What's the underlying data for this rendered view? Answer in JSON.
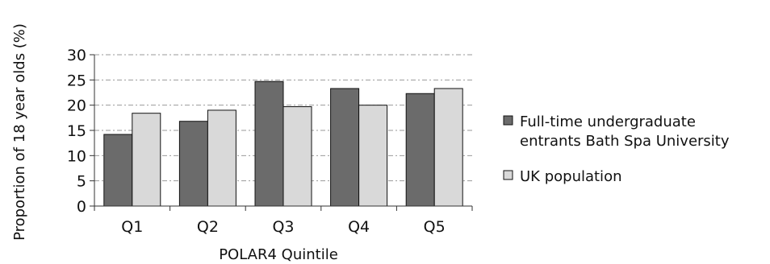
{
  "chart_data": {
    "type": "bar",
    "title": "",
    "xlabel": "POLAR4 Quintile",
    "ylabel": "Proportion of 18 year olds (%)",
    "categories": [
      "Q1",
      "Q2",
      "Q3",
      "Q4",
      "Q5"
    ],
    "ylim": [
      0,
      30
    ],
    "yticks": [
      0,
      5,
      10,
      15,
      20,
      25,
      30
    ],
    "grid": true,
    "legend_position": "right",
    "series": [
      {
        "name": "Full-time undergraduate entrants Bath Spa University",
        "name_lines": [
          "Full-time undergraduate",
          "entrants Bath Spa University"
        ],
        "values": [
          14.2,
          16.8,
          24.7,
          23.3,
          22.3
        ],
        "color": "#6b6b6b"
      },
      {
        "name": "UK population",
        "name_lines": [
          "UK population"
        ],
        "values": [
          18.4,
          19.0,
          19.7,
          20.0,
          23.3
        ],
        "color": "#d9d9d9"
      }
    ]
  }
}
